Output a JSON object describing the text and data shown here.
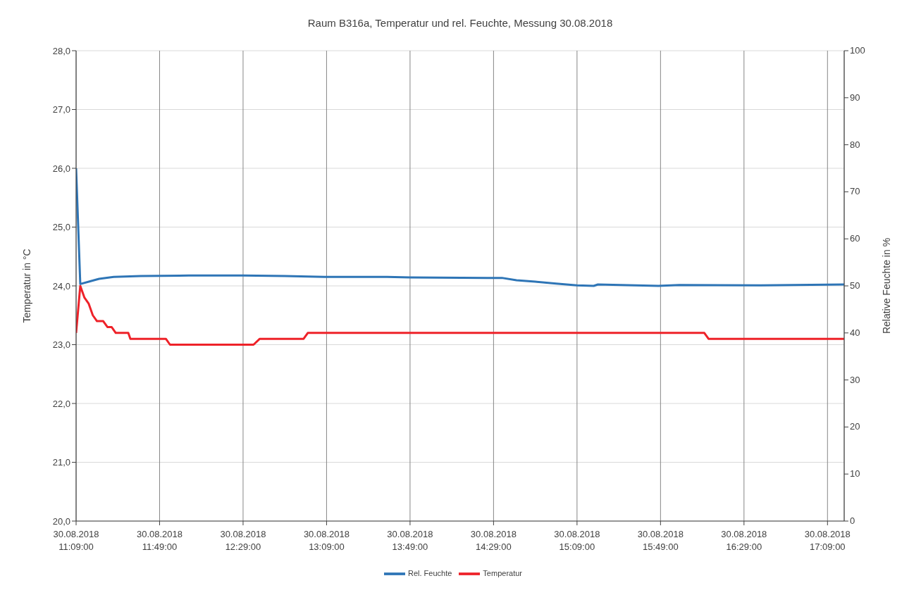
{
  "chart_data": {
    "type": "line",
    "title": "Raum B316a, Temperatur und rel. Feuchte, Messung 30.08.2018",
    "ylabel": "Temperatur in °C",
    "y2label": "Relative Feuchte in %",
    "xlim": [
      "2018-08-30T11:09",
      "2018-08-30T17:17"
    ],
    "xticks": [
      {
        "value": "2018-08-30T11:09",
        "label": "30.08.2018\n11:09:00"
      },
      {
        "value": "2018-08-30T11:49",
        "label": "30.08.2018\n11:49:00"
      },
      {
        "value": "2018-08-30T12:29",
        "label": "30.08.2018\n12:29:00"
      },
      {
        "value": "2018-08-30T13:09",
        "label": "30.08.2018\n13:09:00"
      },
      {
        "value": "2018-08-30T13:49",
        "label": "30.08.2018\n13:49:00"
      },
      {
        "value": "2018-08-30T14:29",
        "label": "30.08.2018\n14:29:00"
      },
      {
        "value": "2018-08-30T15:09",
        "label": "30.08.2018\n15:09:00"
      },
      {
        "value": "2018-08-30T15:49",
        "label": "30.08.2018\n15:49:00"
      },
      {
        "value": "2018-08-30T16:29",
        "label": "30.08.2018\n16:29:00"
      },
      {
        "value": "2018-08-30T17:09",
        "label": "30.08.2018\n17:09:00"
      }
    ],
    "ylim": [
      20,
      28
    ],
    "yticks": [
      {
        "value": 20,
        "label": "20,0"
      },
      {
        "value": 21,
        "label": "21,0"
      },
      {
        "value": 22,
        "label": "22,0"
      },
      {
        "value": 23,
        "label": "23,0"
      },
      {
        "value": 24,
        "label": "24,0"
      },
      {
        "value": 25,
        "label": "25,0"
      },
      {
        "value": 26,
        "label": "26,0"
      },
      {
        "value": 27,
        "label": "27,0"
      },
      {
        "value": 28,
        "label": "28,0"
      }
    ],
    "y2lim": [
      0,
      100
    ],
    "y2ticks": [
      0,
      10,
      20,
      30,
      40,
      50,
      60,
      70,
      80,
      90,
      100
    ],
    "grid": true,
    "legend": "bottom",
    "marker": "none",
    "line_style": "solid",
    "series": [
      {
        "name": "Temperatur",
        "color": "#ee2229",
        "x": [
          "2018-08-30T11:09",
          "2018-08-30T11:11",
          "2018-08-30T11:13",
          "2018-08-30T11:15",
          "2018-08-30T11:17",
          "2018-08-30T11:19",
          "2018-08-30T11:22",
          "2018-08-30T11:24",
          "2018-08-30T11:26",
          "2018-08-30T11:28",
          "2018-08-30T11:34",
          "2018-08-30T11:35",
          "2018-08-30T11:52",
          "2018-08-30T11:54",
          "2018-08-30T12:34",
          "2018-08-30T12:37",
          "2018-08-30T12:58",
          "2018-08-30T13:00",
          "2018-08-30T16:10",
          "2018-08-30T16:12",
          "2018-08-30T17:17"
        ],
        "values": [
          23.2,
          24.0,
          23.8,
          23.7,
          23.5,
          23.4,
          23.4,
          23.3,
          23.3,
          23.2,
          23.2,
          23.1,
          23.1,
          23.0,
          23.0,
          23.1,
          23.1,
          23.2,
          23.2,
          23.1,
          23.1
        ]
      },
      {
        "name": "Rel. Feuchte",
        "color": "#2e75b6",
        "axis": "y2",
        "x": [
          "2018-08-30T11:09",
          "2018-08-30T11:11",
          "2018-08-30T11:16",
          "2018-08-30T11:20",
          "2018-08-30T11:27",
          "2018-08-30T11:40",
          "2018-08-30T12:03",
          "2018-08-30T12:29",
          "2018-08-30T12:49",
          "2018-08-30T13:08",
          "2018-08-30T13:38",
          "2018-08-30T13:49",
          "2018-08-30T14:26",
          "2018-08-30T14:33",
          "2018-08-30T14:40",
          "2018-08-30T14:49",
          "2018-08-30T14:59",
          "2018-08-30T15:09",
          "2018-08-30T15:17",
          "2018-08-30T15:19",
          "2018-08-30T15:48",
          "2018-08-30T15:58",
          "2018-08-30T16:37",
          "2018-08-30T17:17"
        ],
        "values": [
          75,
          50.4,
          51.0,
          51.5,
          51.9,
          52.1,
          52.2,
          52.2,
          52.1,
          51.9,
          51.9,
          51.8,
          51.7,
          51.7,
          51.2,
          50.9,
          50.5,
          50.1,
          50.0,
          50.3,
          50.0,
          50.2,
          50.1,
          50.3
        ]
      }
    ]
  }
}
